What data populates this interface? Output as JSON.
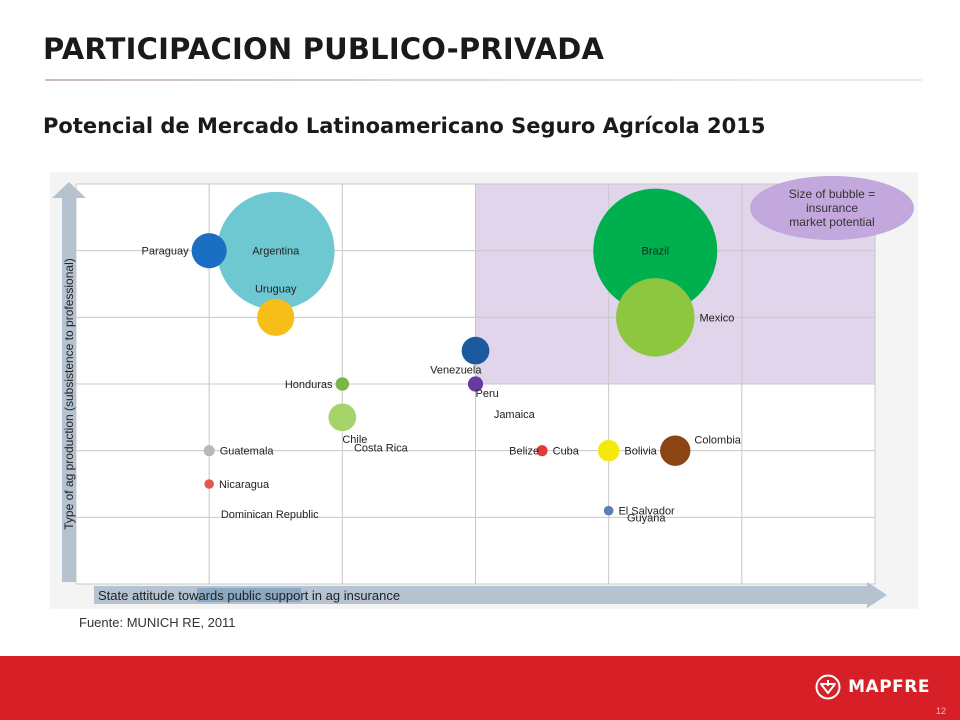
{
  "slide": {
    "title": "PARTICIPACION PUBLICO-PRIVADA",
    "subtitle": "Potencial de Mercado Latinoamericano Seguro Agrícola 2015",
    "source": "Fuente: MUNICH RE, 2011",
    "page_number": "12",
    "logo_text": "MAPFRE",
    "accent_color": "#d61f26"
  },
  "chart_data": {
    "type": "scatter",
    "variant": "bubble",
    "title": "",
    "xlabel": "State attitude towards public support in ag insurance",
    "ylabel": "Type of ag production (subsistence to professional)",
    "xlim": [
      0,
      6
    ],
    "ylim": [
      0,
      6
    ],
    "grid": true,
    "highlight_region": {
      "x": [
        3,
        6
      ],
      "y": [
        3,
        6
      ],
      "color": "#e0d5ea"
    },
    "legend_note": "Size of bubble = insurance market potential",
    "legend_position": "top-right",
    "legend_color": "#c2a8dc",
    "points": [
      {
        "label": "Argentina",
        "x": 1.5,
        "y": 5.0,
        "size": 0.9,
        "color": "#6ec8d2",
        "label_pos": "inside"
      },
      {
        "label": "Paraguay",
        "x": 1.0,
        "y": 5.0,
        "size": 0.08,
        "color": "#1b6fc2",
        "label_pos": "left"
      },
      {
        "label": "Uruguay",
        "x": 1.5,
        "y": 4.0,
        "size": 0.09,
        "color": "#f7be1a",
        "label_pos": "above"
      },
      {
        "label": "Brazil",
        "x": 4.35,
        "y": 5.0,
        "size": 1.0,
        "color": "#00b04f",
        "label_pos": "inside"
      },
      {
        "label": "Mexico",
        "x": 4.35,
        "y": 4.0,
        "size": 0.4,
        "color": "#8dc63f",
        "label_pos": "right"
      },
      {
        "label": "Venezuela",
        "x": 3.0,
        "y": 3.5,
        "size": 0.05,
        "color": "#1b5a9c",
        "label_pos": "left-below"
      },
      {
        "label": "Honduras",
        "x": 2.0,
        "y": 3.0,
        "size": 0.012,
        "color": "#7ab648",
        "label_pos": "left"
      },
      {
        "label": "Peru",
        "x": 3.0,
        "y": 3.0,
        "size": 0.015,
        "color": "#6a3aa0",
        "label_pos": "right-below"
      },
      {
        "label": "Jamaica",
        "x": 3.1,
        "y": 2.55,
        "size": 0,
        "color": "#999999",
        "label_pos": "right"
      },
      {
        "label": "Chile",
        "x": 2.0,
        "y": 2.5,
        "size": 0.05,
        "color": "#a6d36a",
        "label_pos": "below"
      },
      {
        "label": "Costa Rica",
        "x": 2.05,
        "y": 2.05,
        "size": 0,
        "color": "#999999",
        "label_pos": "right"
      },
      {
        "label": "Guatemala",
        "x": 1.0,
        "y": 2.0,
        "size": 0.008,
        "color": "#b8b8b8",
        "label_pos": "right"
      },
      {
        "label": "Belize",
        "x": 3.5,
        "y": 2.0,
        "size": 0,
        "color": "#999999",
        "label_pos": "left"
      },
      {
        "label": "Cuba",
        "x": 3.5,
        "y": 2.0,
        "size": 0.008,
        "color": "#e03c3c",
        "label_pos": "right"
      },
      {
        "label": "Bolivia",
        "x": 4.0,
        "y": 2.0,
        "size": 0.03,
        "color": "#f5e90c",
        "label_pos": "right"
      },
      {
        "label": "Colombia",
        "x": 4.5,
        "y": 2.0,
        "size": 0.06,
        "color": "#8b4513",
        "label_pos": "right-above"
      },
      {
        "label": "Nicaragua",
        "x": 1.0,
        "y": 1.5,
        "size": 0.006,
        "color": "#e05a4a",
        "label_pos": "right"
      },
      {
        "label": "Dominican Republic",
        "x": 1.05,
        "y": 1.05,
        "size": 0,
        "color": "#999999",
        "label_pos": "right"
      },
      {
        "label": "El Salvador",
        "x": 4.0,
        "y": 1.1,
        "size": 0.006,
        "color": "#5b7fb0",
        "label_pos": "right"
      },
      {
        "label": "Guyana",
        "x": 4.1,
        "y": 1.0,
        "size": 0,
        "color": "#999999",
        "label_pos": "right"
      }
    ]
  }
}
